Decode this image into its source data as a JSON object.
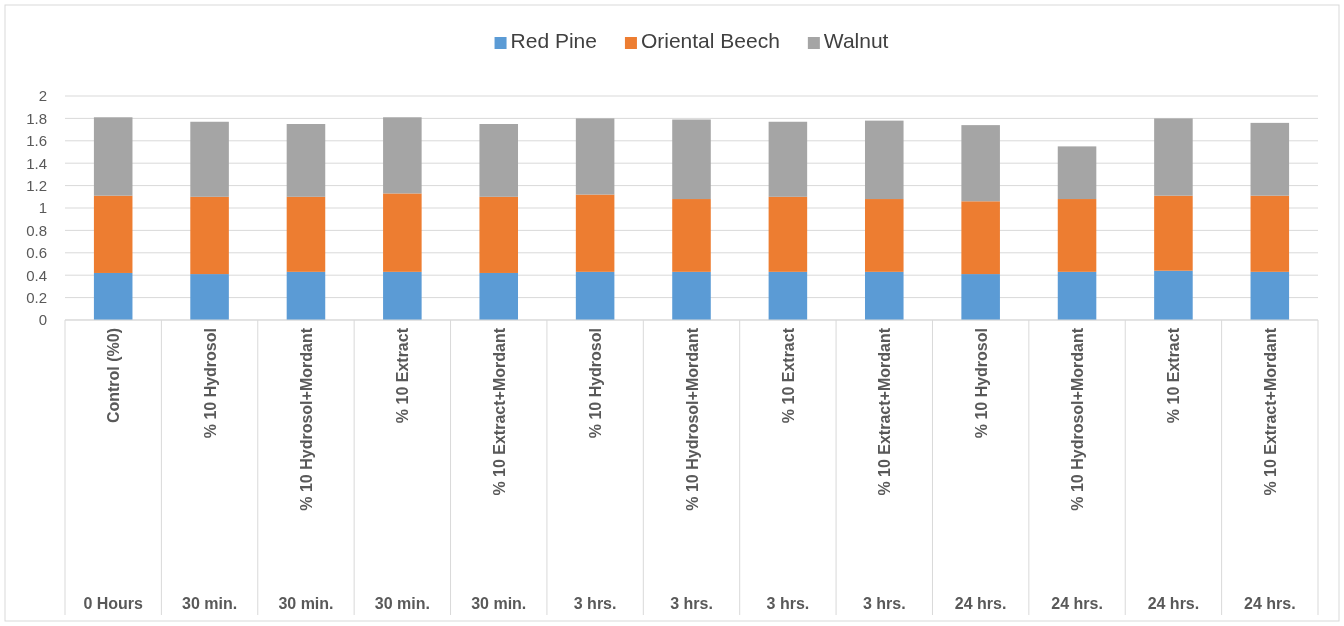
{
  "chart_data": {
    "type": "bar",
    "stacked": true,
    "legend": "top",
    "grid": true,
    "categories": [
      "Control (%0)\n0 Hours",
      "% 10 Hydrosol\n30 min.",
      "% 10 Hydrosol+Mordant\n30 min.",
      "% 10 Extract\n30 min.",
      "% 10 Extract+Mordant\n30 min.",
      "% 10 Hydrosol\n3 hrs.",
      "% 10 Hydrosol+Mordant\n3 hrs.",
      "% 10 Extract\n3 hrs.",
      "% 10 Extract+Mordant\n3 hrs.",
      "% 10 Hydrosol\n24 hrs.",
      "% 10 Hydrosol+Mordant\n24 hrs.",
      "% 10 Extract\n24 hrs.",
      "% 10 Extract+Mordant\n24 hrs."
    ],
    "ylim": [
      0,
      2
    ],
    "yticks": [
      0,
      {
        "value": 0.2,
        "label": "0.2"
      },
      {
        "value": 0.4,
        "label": "0.4"
      },
      {
        "value": 0.6,
        "label": "0.6"
      },
      {
        "value": 0.8,
        "label": "0.8"
      },
      1,
      {
        "value": 1.2,
        "label": "1.2"
      },
      {
        "value": 1.4,
        "label": "1.4"
      },
      {
        "value": 1.6,
        "label": "1.6"
      },
      {
        "value": 1.8,
        "label": "1.8"
      },
      2
    ],
    "series": [
      {
        "name": "Red Pine",
        "color": "#5b9bd5",
        "values": [
          0.42,
          0.41,
          0.43,
          0.43,
          0.42,
          0.43,
          0.43,
          0.43,
          0.43,
          0.41,
          0.43,
          0.44,
          0.43
        ]
      },
      {
        "name": "Oriental Beech",
        "color": "#ed7d31",
        "values": [
          0.69,
          0.69,
          0.67,
          0.7,
          0.68,
          0.69,
          0.65,
          0.67,
          0.65,
          0.65,
          0.65,
          0.67,
          0.68
        ]
      },
      {
        "name": "Walnut",
        "color": "#a5a5a5",
        "values": [
          0.7,
          0.67,
          0.65,
          0.68,
          0.65,
          0.68,
          0.71,
          0.67,
          0.7,
          0.68,
          0.47,
          0.69,
          0.65
        ]
      }
    ]
  }
}
